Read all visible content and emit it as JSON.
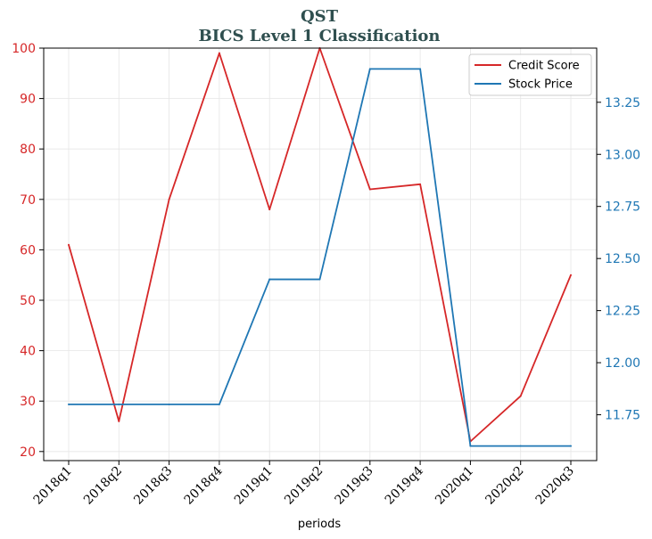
{
  "chart_data": {
    "type": "line",
    "title": "QST",
    "subtitle": "BICS Level 1 Classification",
    "xlabel": "periods",
    "categories": [
      "2018q1",
      "2018q2",
      "2018q3",
      "2018q4",
      "2019q1",
      "2019q2",
      "2019q3",
      "2019q4",
      "2020q1",
      "2020q2",
      "2020q3"
    ],
    "series": [
      {
        "name": "Credit Score",
        "axis": "left",
        "color": "#d62728",
        "values": [
          61,
          26,
          70,
          99,
          68,
          100,
          72,
          73,
          22,
          31,
          55
        ]
      },
      {
        "name": "Stock Price",
        "axis": "right",
        "color": "#1f77b4",
        "values": [
          11.8,
          11.8,
          11.8,
          11.8,
          12.4,
          12.4,
          13.41,
          13.41,
          11.6,
          11.6,
          11.6
        ]
      }
    ],
    "y_left": {
      "ylim": [
        18.2,
        100
      ],
      "ticks": [
        20,
        30,
        40,
        50,
        60,
        70,
        80,
        90,
        100
      ],
      "color": "#d62728"
    },
    "y_right": {
      "ylim": [
        11.53,
        13.51
      ],
      "ticks": [
        11.75,
        12.0,
        12.25,
        12.5,
        12.75,
        13.0,
        13.25
      ],
      "tick_labels": [
        "11.75",
        "12.00",
        "12.25",
        "12.50",
        "12.75",
        "13.00",
        "13.25"
      ],
      "color": "#1f77b4"
    },
    "grid": true,
    "legend": {
      "placement": "top-right",
      "entries": [
        "Credit Score",
        "Stock Price"
      ]
    }
  }
}
